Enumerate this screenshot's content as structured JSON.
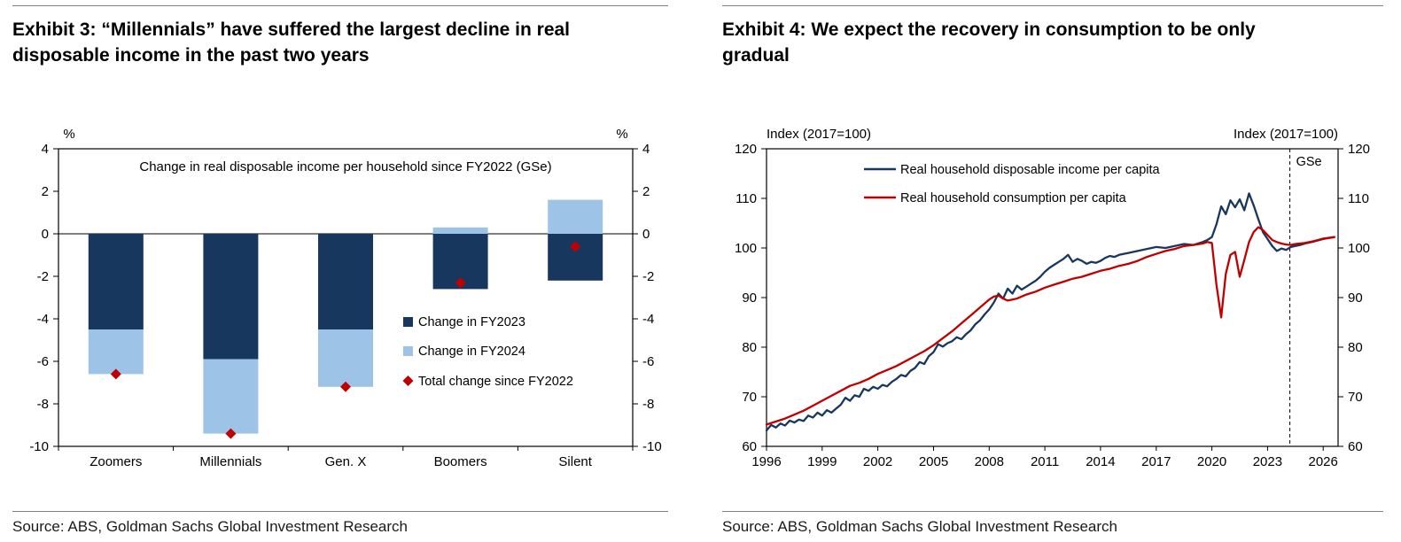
{
  "colors": {
    "navy": "#17375e",
    "light_blue": "#9dc3e6",
    "red": "#c00000",
    "rule": "#808080"
  },
  "exhibit3": {
    "title": "Exhibit 3: “Millennials” have suffered the largest decline in real disposable income in the past two years",
    "source": "Source: ABS, Goldman Sachs Global Investment Research",
    "chart_data": {
      "type": "bar",
      "subtitle": "Change in real disposable income per household since FY2022 (GSe)",
      "unit": "%",
      "categories": [
        "Zoomers",
        "Millennials",
        "Gen. X",
        "Boomers",
        "Silent"
      ],
      "series": [
        {
          "name": "Change in FY2023",
          "marker": "square",
          "color_key": "navy",
          "values": [
            -4.5,
            -5.9,
            -4.5,
            -2.6,
            -2.2
          ]
        },
        {
          "name": "Change in FY2024",
          "marker": "square",
          "color_key": "light_blue",
          "values": [
            -2.1,
            -3.5,
            -2.7,
            0.3,
            1.6
          ]
        },
        {
          "name": "Total change since FY2022",
          "marker": "diamond",
          "color_key": "red",
          "values": [
            -6.6,
            -9.4,
            -7.2,
            -2.3,
            -0.6
          ]
        }
      ],
      "ylim": [
        -10,
        4
      ],
      "ytick_step": 2,
      "legend_position": "center-right",
      "grid": "zero-line-only"
    }
  },
  "exhibit4": {
    "title": "Exhibit 4: We expect the recovery in consumption to be only gradual",
    "source": "Source: ABS, Goldman Sachs Global Investment Research",
    "chart_data": {
      "type": "line",
      "axis_label": "Index (2017=100)",
      "ylim": [
        60,
        120
      ],
      "ytick_step": 10,
      "xlim": [
        1996,
        2026.8
      ],
      "xticks": [
        1996,
        1999,
        2002,
        2005,
        2008,
        2011,
        2014,
        2017,
        2020,
        2023,
        2026
      ],
      "forecast_line_x": 2024.2,
      "forecast_label": "GSe",
      "legend_position": "top-left",
      "grid": "off",
      "series": [
        {
          "name": "Real household disposable income per capita",
          "color_key": "navy",
          "points": [
            [
              1996,
              63.2
            ],
            [
              1996.25,
              64.3
            ],
            [
              1996.5,
              63.8
            ],
            [
              1996.75,
              64.6
            ],
            [
              1997,
              64.2
            ],
            [
              1997.25,
              65.2
            ],
            [
              1997.5,
              64.8
            ],
            [
              1997.75,
              65.4
            ],
            [
              1998,
              65.1
            ],
            [
              1998.25,
              66.2
            ],
            [
              1998.5,
              65.8
            ],
            [
              1998.75,
              66.8
            ],
            [
              1999,
              66.2
            ],
            [
              1999.25,
              67.3
            ],
            [
              1999.5,
              66.8
            ],
            [
              1999.75,
              67.6
            ],
            [
              2000,
              68.4
            ],
            [
              2000.25,
              69.8
            ],
            [
              2000.5,
              69.2
            ],
            [
              2000.75,
              70.3
            ],
            [
              2001,
              70.0
            ],
            [
              2001.25,
              71.6
            ],
            [
              2001.5,
              71.2
            ],
            [
              2001.75,
              72.0
            ],
            [
              2002,
              71.6
            ],
            [
              2002.25,
              72.4
            ],
            [
              2002.5,
              72.1
            ],
            [
              2002.75,
              73.0
            ],
            [
              2003,
              73.6
            ],
            [
              2003.25,
              74.4
            ],
            [
              2003.5,
              74.1
            ],
            [
              2003.75,
              75.2
            ],
            [
              2004,
              75.8
            ],
            [
              2004.25,
              77.0
            ],
            [
              2004.5,
              76.6
            ],
            [
              2004.75,
              78.2
            ],
            [
              2005,
              79.0
            ],
            [
              2005.25,
              80.6
            ],
            [
              2005.5,
              80.1
            ],
            [
              2005.75,
              80.8
            ],
            [
              2006,
              81.2
            ],
            [
              2006.25,
              82.0
            ],
            [
              2006.5,
              81.6
            ],
            [
              2006.75,
              82.6
            ],
            [
              2007,
              83.4
            ],
            [
              2007.25,
              84.6
            ],
            [
              2007.5,
              85.4
            ],
            [
              2007.75,
              86.6
            ],
            [
              2008,
              87.6
            ],
            [
              2008.25,
              89.0
            ],
            [
              2008.5,
              90.8
            ],
            [
              2008.75,
              89.8
            ],
            [
              2009,
              91.8
            ],
            [
              2009.25,
              90.8
            ],
            [
              2009.5,
              92.4
            ],
            [
              2009.75,
              91.6
            ],
            [
              2010,
              92.2
            ],
            [
              2010.25,
              92.8
            ],
            [
              2010.5,
              93.4
            ],
            [
              2010.75,
              94.2
            ],
            [
              2011,
              95.2
            ],
            [
              2011.25,
              96.0
            ],
            [
              2011.5,
              96.6
            ],
            [
              2011.75,
              97.2
            ],
            [
              2012,
              97.8
            ],
            [
              2012.25,
              98.6
            ],
            [
              2012.5,
              97.2
            ],
            [
              2012.75,
              97.8
            ],
            [
              2013,
              97.4
            ],
            [
              2013.25,
              96.8
            ],
            [
              2013.5,
              97.2
            ],
            [
              2013.75,
              97.0
            ],
            [
              2014,
              97.4
            ],
            [
              2014.25,
              98.0
            ],
            [
              2014.5,
              98.4
            ],
            [
              2014.75,
              98.2
            ],
            [
              2015,
              98.6
            ],
            [
              2015.5,
              99.0
            ],
            [
              2016,
              99.4
            ],
            [
              2016.5,
              99.8
            ],
            [
              2017,
              100.2
            ],
            [
              2017.5,
              100.0
            ],
            [
              2018,
              100.4
            ],
            [
              2018.5,
              100.8
            ],
            [
              2019,
              100.6
            ],
            [
              2019.5,
              101.2
            ],
            [
              2019.75,
              101.6
            ],
            [
              2020,
              102.2
            ],
            [
              2020.25,
              104.8
            ],
            [
              2020.5,
              108.4
            ],
            [
              2020.75,
              106.8
            ],
            [
              2021,
              109.6
            ],
            [
              2021.25,
              108.2
            ],
            [
              2021.5,
              109.8
            ],
            [
              2021.75,
              107.6
            ],
            [
              2022,
              111.0
            ],
            [
              2022.25,
              108.6
            ],
            [
              2022.5,
              105.8
            ],
            [
              2022.75,
              103.2
            ],
            [
              2023,
              101.8
            ],
            [
              2023.25,
              100.4
            ],
            [
              2023.5,
              99.4
            ],
            [
              2023.75,
              99.9
            ],
            [
              2024,
              99.6
            ],
            [
              2024.25,
              100.2
            ],
            [
              2024.5,
              100.4
            ],
            [
              2024.75,
              100.6
            ],
            [
              2025,
              100.9
            ],
            [
              2025.5,
              101.3
            ],
            [
              2026,
              101.8
            ],
            [
              2026.6,
              102.2
            ]
          ]
        },
        {
          "name": "Real household consumption per capita",
          "color_key": "red",
          "points": [
            [
              1996,
              64.4
            ],
            [
              1996.5,
              65.0
            ],
            [
              1997,
              65.6
            ],
            [
              1997.5,
              66.4
            ],
            [
              1998,
              67.2
            ],
            [
              1998.5,
              68.2
            ],
            [
              1999,
              69.2
            ],
            [
              1999.5,
              70.2
            ],
            [
              2000,
              71.2
            ],
            [
              2000.5,
              72.2
            ],
            [
              2001,
              72.8
            ],
            [
              2001.5,
              73.6
            ],
            [
              2002,
              74.6
            ],
            [
              2002.5,
              75.4
            ],
            [
              2003,
              76.2
            ],
            [
              2003.5,
              77.2
            ],
            [
              2004,
              78.2
            ],
            [
              2004.5,
              79.2
            ],
            [
              2005,
              80.4
            ],
            [
              2005.5,
              81.8
            ],
            [
              2006,
              83.2
            ],
            [
              2006.5,
              84.8
            ],
            [
              2007,
              86.4
            ],
            [
              2007.5,
              88.0
            ],
            [
              2008,
              89.6
            ],
            [
              2008.25,
              90.2
            ],
            [
              2008.5,
              90.4
            ],
            [
              2008.75,
              89.8
            ],
            [
              2009,
              89.4
            ],
            [
              2009.5,
              89.8
            ],
            [
              2010,
              90.6
            ],
            [
              2010.5,
              91.2
            ],
            [
              2011,
              92.0
            ],
            [
              2011.5,
              92.6
            ],
            [
              2012,
              93.2
            ],
            [
              2012.5,
              93.8
            ],
            [
              2013,
              94.2
            ],
            [
              2013.5,
              94.8
            ],
            [
              2014,
              95.4
            ],
            [
              2014.5,
              95.8
            ],
            [
              2015,
              96.4
            ],
            [
              2015.5,
              96.8
            ],
            [
              2016,
              97.4
            ],
            [
              2016.5,
              98.2
            ],
            [
              2017,
              98.8
            ],
            [
              2017.5,
              99.4
            ],
            [
              2018,
              99.8
            ],
            [
              2018.5,
              100.4
            ],
            [
              2019,
              100.6
            ],
            [
              2019.5,
              100.9
            ],
            [
              2019.75,
              101.2
            ],
            [
              2020,
              101.0
            ],
            [
              2020.25,
              92.5
            ],
            [
              2020.5,
              86.0
            ],
            [
              2020.75,
              94.8
            ],
            [
              2021,
              98.6
            ],
            [
              2021.25,
              99.2
            ],
            [
              2021.5,
              94.2
            ],
            [
              2021.75,
              97.6
            ],
            [
              2022,
              101.2
            ],
            [
              2022.25,
              103.2
            ],
            [
              2022.5,
              104.2
            ],
            [
              2022.75,
              103.6
            ],
            [
              2023,
              102.6
            ],
            [
              2023.25,
              101.6
            ],
            [
              2023.5,
              101.2
            ],
            [
              2023.75,
              100.9
            ],
            [
              2024,
              100.7
            ],
            [
              2024.25,
              100.6
            ],
            [
              2024.5,
              100.8
            ],
            [
              2025,
              101.0
            ],
            [
              2025.5,
              101.4
            ],
            [
              2026,
              101.9
            ],
            [
              2026.6,
              102.2
            ]
          ]
        }
      ]
    }
  }
}
